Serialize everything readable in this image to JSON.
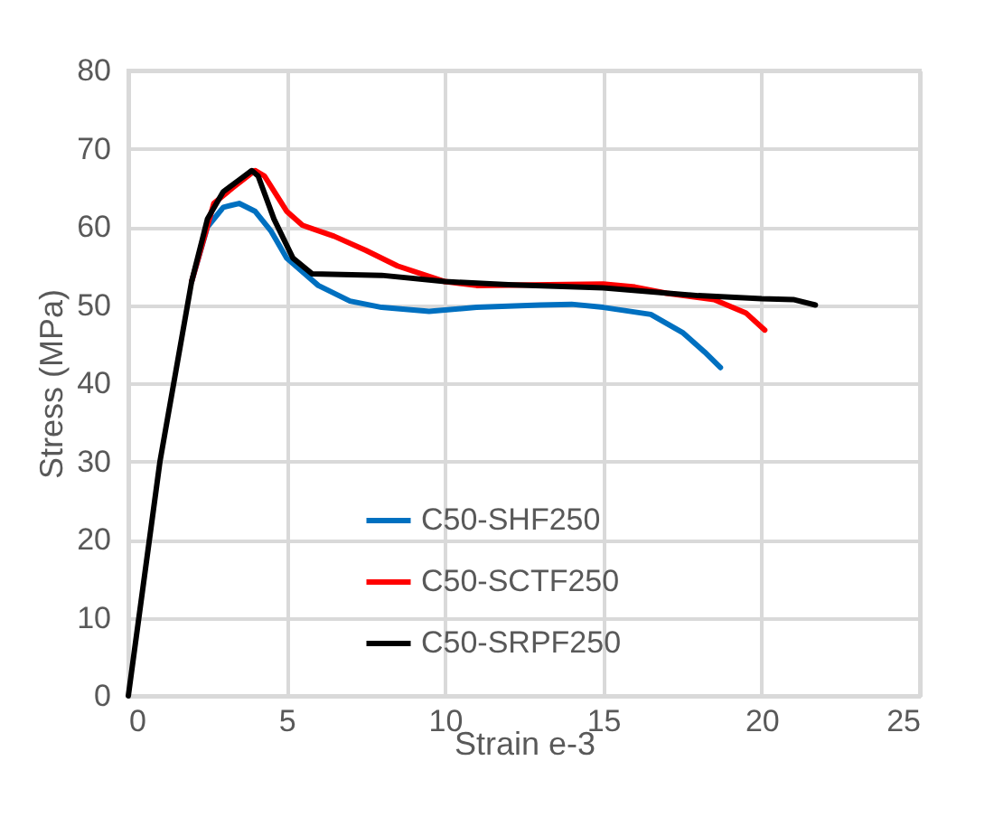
{
  "chart_data": {
    "type": "line",
    "xlabel": "Strain e-3",
    "ylabel": "Stress (MPa)",
    "xlim": [
      0,
      25
    ],
    "xticks": [
      0,
      5,
      10,
      15,
      20,
      25
    ],
    "ylim": [
      0,
      80
    ],
    "yticks": [
      0,
      10,
      20,
      30,
      40,
      50,
      60,
      70,
      80
    ],
    "grid": true,
    "legend": "bottom",
    "line_style": "solid",
    "marker": "none",
    "series": [
      {
        "name": "C50-SHF250",
        "color": "#0070c0",
        "x": [
          2,
          2.5,
          3,
          3.5,
          4,
          4.5,
          5,
          6,
          7,
          8,
          9.5,
          11,
          13,
          14,
          15,
          16.5,
          17.5,
          18.2,
          18.7
        ],
        "values": [
          53,
          60,
          62.5,
          63,
          62,
          59.5,
          56,
          52.5,
          50.5,
          49.7,
          49.2,
          49.7,
          50,
          50.1,
          49.7,
          48.8,
          46.5,
          44,
          42
        ]
      },
      {
        "name": "C50-SCTF250",
        "color": "#ff0000",
        "x": [
          2,
          2.7,
          3.3,
          4,
          4.3,
          5,
          5.5,
          6.5,
          7.5,
          8.5,
          10,
          11,
          15,
          16,
          17,
          18.5,
          19.5,
          20.1
        ],
        "values": [
          53,
          63,
          65,
          67.2,
          66.5,
          62,
          60.2,
          58.8,
          57,
          55,
          53,
          52.5,
          52.7,
          52.3,
          51.5,
          50.7,
          49,
          46.8
        ]
      },
      {
        "name": "C50-SRPF250",
        "color": "#000000",
        "x": [
          0,
          1,
          2,
          2.5,
          3,
          3.5,
          3.9,
          4.1,
          4.6,
          5.2,
          5.8,
          8,
          10,
          12,
          15,
          18,
          20,
          21,
          21.7
        ],
        "values": [
          0,
          30,
          53,
          61,
          64.5,
          66,
          67.2,
          66.5,
          61,
          56,
          54,
          53.8,
          53,
          52.6,
          52.2,
          51.2,
          50.8,
          50.7,
          50
        ]
      }
    ]
  }
}
